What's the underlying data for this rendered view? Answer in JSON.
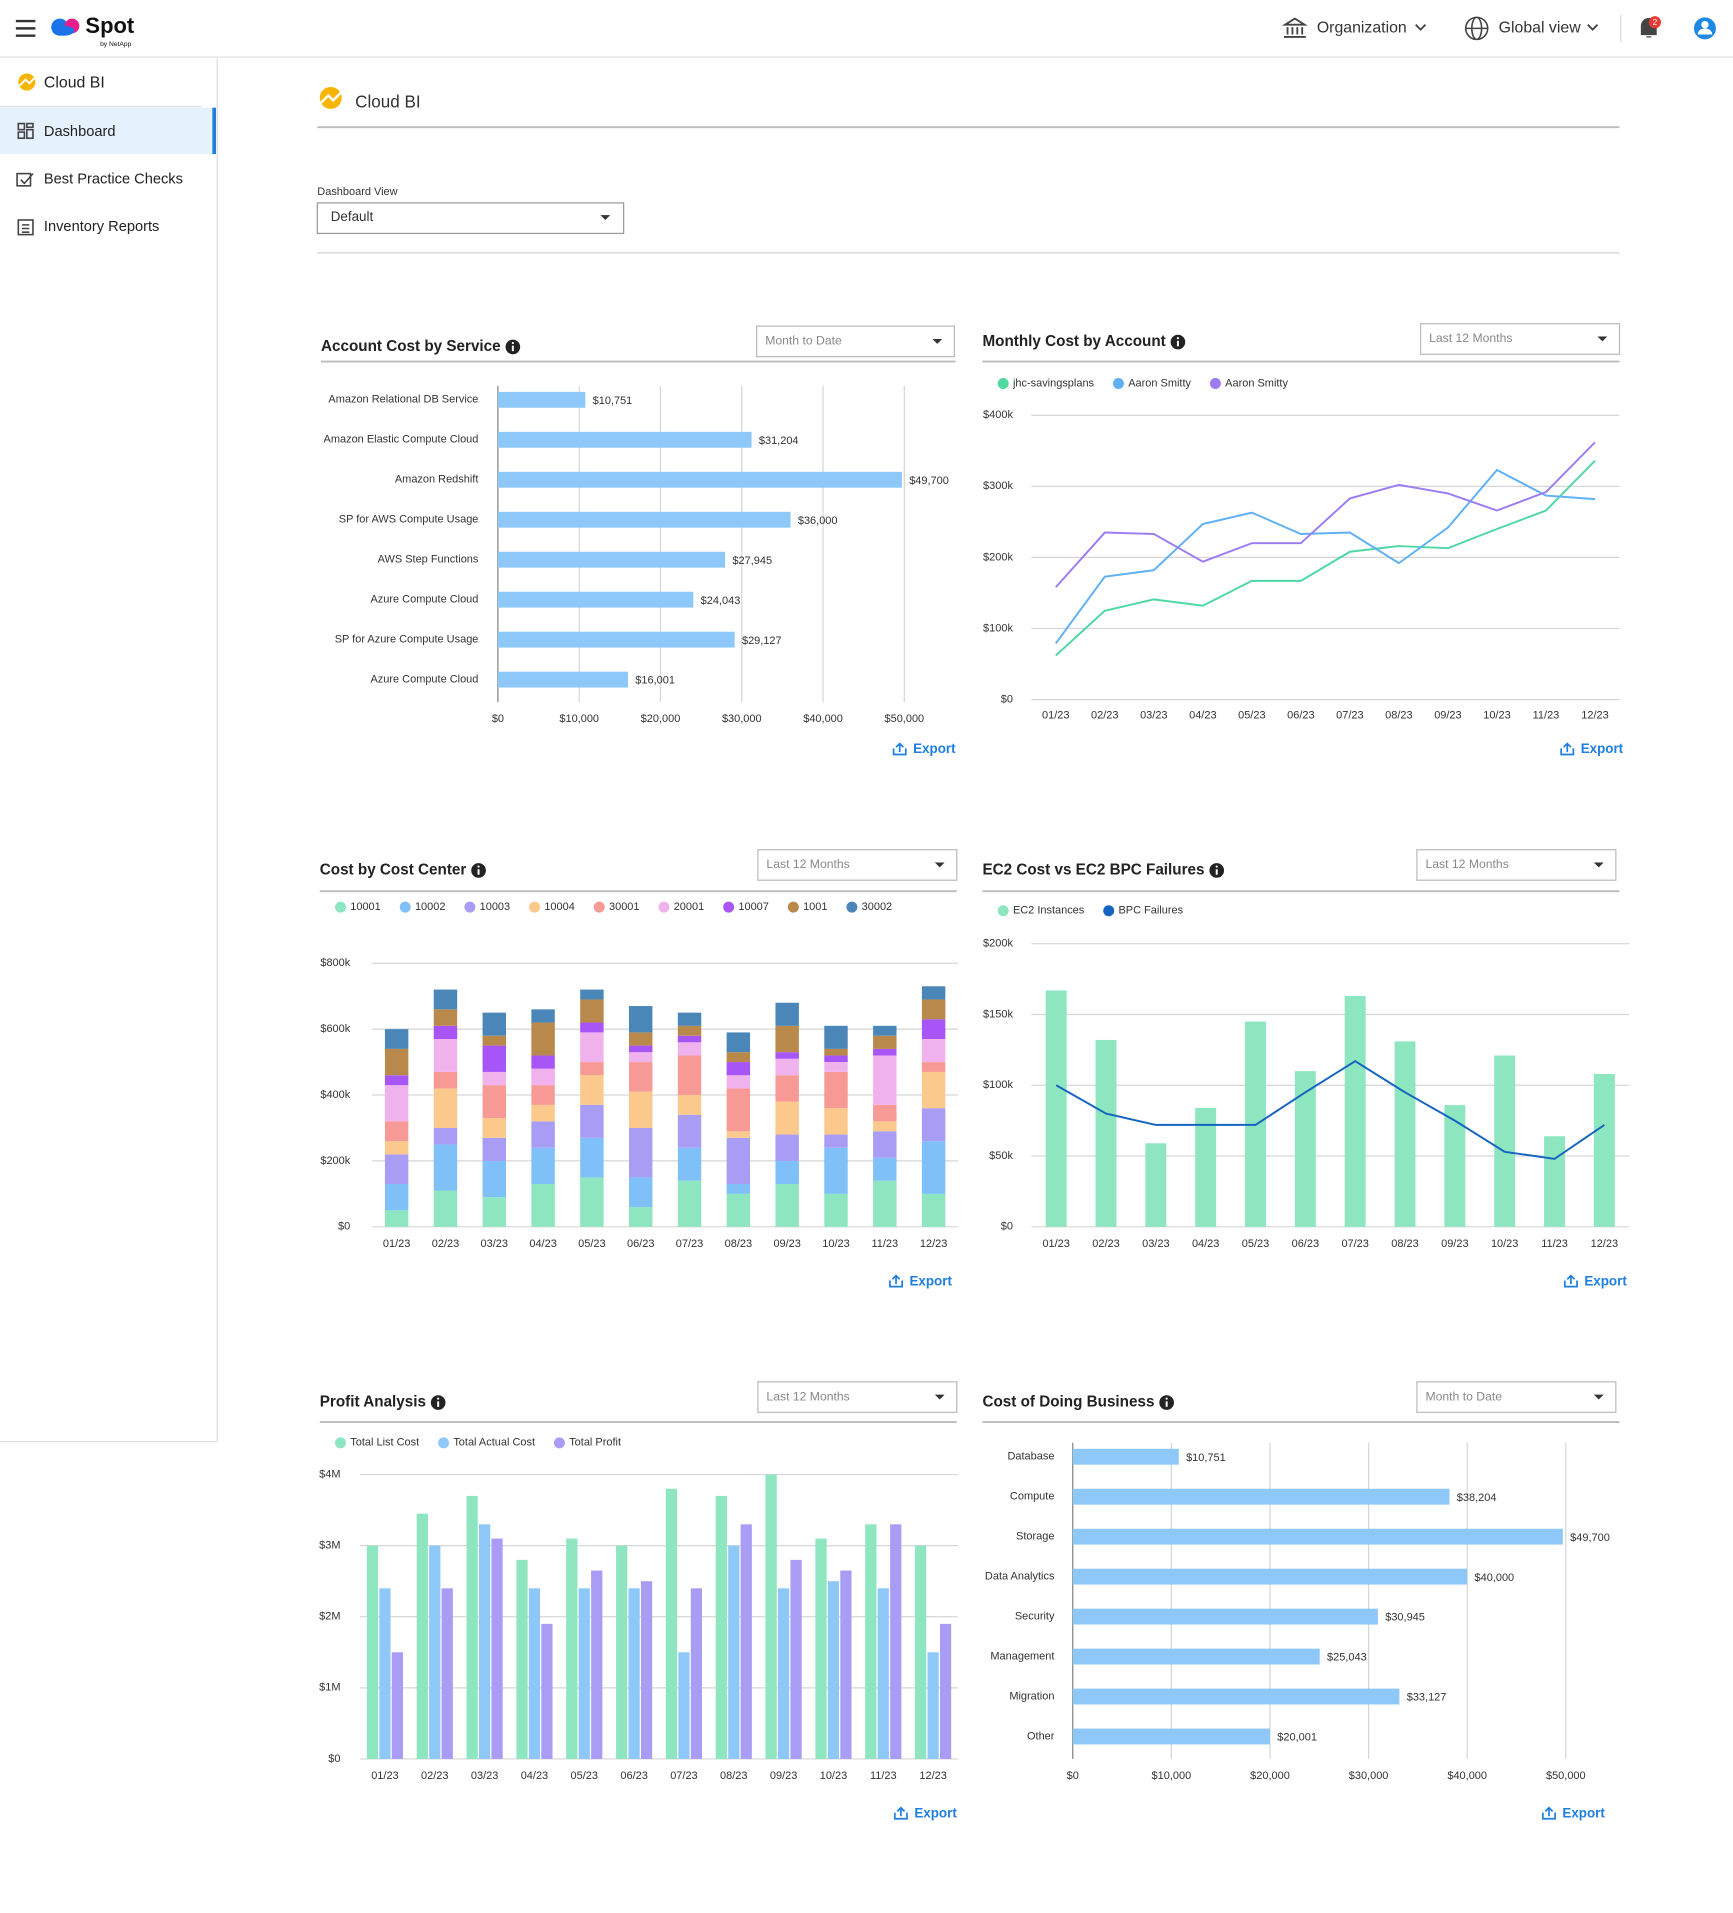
{
  "header": {
    "logo": "Spot",
    "logo_sub": "by NetApp",
    "organization": "Organization",
    "view": "Global view",
    "notification_count": 2
  },
  "sidebar": {
    "section": "Cloud BI",
    "items": [
      "Dashboard",
      "Best Practice Checks",
      "Inventory Reports"
    ]
  },
  "page": {
    "title": "Cloud BI",
    "view_label": "Dashboard View",
    "view_value": "Default"
  },
  "chart_data": [
    {
      "type": "bar",
      "orientation": "horizontal",
      "title": "Account Cost by Service",
      "filter": "Month to Date",
      "action": "Export",
      "categories": [
        "Amazon Relational DB Service",
        "Amazon Elastic Compute Cloud",
        "Amazon Redshift",
        "SP for AWS Compute Usage",
        "AWS Step Functions",
        "Azure Compute Cloud",
        "SP for Azure Compute Usage",
        "Azure Compute Cloud"
      ],
      "values": [
        10751,
        31204,
        49700,
        36000,
        27945,
        24043,
        29127,
        16001
      ],
      "value_labels": [
        "$10,751",
        "$31,204",
        "$49,700",
        "$36,000",
        "$27,945",
        "$24,043",
        "$29,127",
        "$16,001"
      ],
      "color": "#8ec8f8",
      "grid": true,
      "xlim": [
        0,
        50000
      ],
      "xticks": [
        {
          "value": 0,
          "label": "$0"
        },
        {
          "value": 10000,
          "label": "$10,000"
        },
        {
          "value": 20000,
          "label": "$20,000"
        },
        {
          "value": 30000,
          "label": "$30,000"
        },
        {
          "value": 40000,
          "label": "$40,000"
        },
        {
          "value": 50000,
          "label": "$50,000"
        }
      ]
    },
    {
      "type": "line",
      "title": "Monthly Cost by Account",
      "filter": "Last 12 Months",
      "action": "Export",
      "categories": [
        "01/23",
        "02/23",
        "03/23",
        "04/23",
        "05/23",
        "06/23",
        "07/23",
        "08/23",
        "09/23",
        "10/23",
        "11/23",
        "12/23"
      ],
      "series": [
        {
          "name": "jhc-savingsplans",
          "color": "#4fd8a2",
          "values": [
            62000,
            125000,
            141000,
            132000,
            167000,
            167000,
            208000,
            216000,
            213000,
            240000,
            266000,
            336000
          ]
        },
        {
          "name": "Aaron Smitty",
          "color": "#5fb0f5",
          "values": [
            79000,
            173000,
            182000,
            247000,
            263000,
            233000,
            235000,
            192000,
            242000,
            323000,
            287000,
            282000
          ]
        },
        {
          "name": "Aaron Smitty",
          "color": "#9b7cf4",
          "values": [
            158000,
            235000,
            233000,
            194000,
            220000,
            220000,
            283000,
            302000,
            290000,
            266000,
            292000,
            362000
          ]
        }
      ],
      "grid": true,
      "ylim": [
        0,
        400000
      ],
      "yticks": [
        {
          "value": 0,
          "label": "$0"
        },
        {
          "value": 100000,
          "label": "$100k"
        },
        {
          "value": 200000,
          "label": "$200k"
        },
        {
          "value": 300000,
          "label": "$300k"
        },
        {
          "value": 400000,
          "label": "$400k"
        }
      ]
    },
    {
      "type": "stacked_bar",
      "title": "Cost by Cost Center",
      "filter": "Last 12 Months",
      "action": "Export",
      "categories": [
        "01/23",
        "02/23",
        "03/23",
        "04/23",
        "05/23",
        "06/23",
        "07/23",
        "08/23",
        "09/23",
        "10/23",
        "11/23",
        "12/23"
      ],
      "series": [
        {
          "name": "10001",
          "color": "#8ee6c0",
          "values": [
            50000,
            110000,
            90000,
            130000,
            150000,
            60000,
            140000,
            100000,
            130000,
            100000,
            140000,
            100000
          ]
        },
        {
          "name": "10002",
          "color": "#7ec0f7",
          "values": [
            80000,
            140000,
            110000,
            110000,
            120000,
            90000,
            100000,
            30000,
            70000,
            140000,
            70000,
            160000
          ]
        },
        {
          "name": "10003",
          "color": "#a99cf4",
          "values": [
            90000,
            50000,
            70000,
            80000,
            100000,
            150000,
            100000,
            140000,
            80000,
            40000,
            80000,
            100000
          ]
        },
        {
          "name": "10004",
          "color": "#fcc98c",
          "values": [
            40000,
            120000,
            60000,
            50000,
            90000,
            110000,
            60000,
            20000,
            100000,
            80000,
            30000,
            110000
          ]
        },
        {
          "name": "30001",
          "color": "#f79a96",
          "values": [
            60000,
            50000,
            100000,
            60000,
            40000,
            90000,
            120000,
            130000,
            80000,
            110000,
            50000,
            30000
          ]
        },
        {
          "name": "20001",
          "color": "#f0b2ec",
          "values": [
            110000,
            100000,
            40000,
            50000,
            90000,
            30000,
            40000,
            40000,
            50000,
            30000,
            150000,
            70000
          ]
        },
        {
          "name": "10007",
          "color": "#a855f7",
          "values": [
            30000,
            40000,
            80000,
            40000,
            30000,
            20000,
            20000,
            40000,
            20000,
            20000,
            20000,
            60000
          ]
        },
        {
          "name": "1001",
          "color": "#b8894a",
          "values": [
            80000,
            50000,
            30000,
            100000,
            70000,
            40000,
            30000,
            30000,
            80000,
            20000,
            40000,
            60000
          ]
        },
        {
          "name": "30002",
          "color": "#4b86b8",
          "values": [
            60000,
            60000,
            70000,
            40000,
            30000,
            80000,
            40000,
            60000,
            70000,
            70000,
            30000,
            40000
          ]
        }
      ],
      "grid": true,
      "ylim": [
        0,
        800000
      ],
      "yticks": [
        {
          "value": 0,
          "label": "$0"
        },
        {
          "value": 200000,
          "label": "$200k"
        },
        {
          "value": 400000,
          "label": "$400k"
        },
        {
          "value": 600000,
          "label": "$600k"
        },
        {
          "value": 800000,
          "label": "$800k"
        }
      ]
    },
    {
      "type": "combo",
      "title": "EC2 Cost vs EC2 BPC Failures",
      "filter": "Last 12 Months",
      "action": "Export",
      "categories": [
        "01/23",
        "02/23",
        "03/23",
        "04/23",
        "05/23",
        "06/23",
        "07/23",
        "08/23",
        "09/23",
        "10/23",
        "11/23",
        "12/23"
      ],
      "series": [
        {
          "name": "EC2 Instances",
          "type": "bar",
          "color": "#8ee6c0",
          "values": [
            167000,
            132000,
            59000,
            84000,
            145000,
            110000,
            163000,
            131000,
            86000,
            121000,
            64000,
            108000
          ]
        },
        {
          "name": "BPC Failures",
          "type": "line",
          "color": "#1565c0",
          "values": [
            100000,
            80000,
            72000,
            72000,
            72000,
            95000,
            117000,
            95000,
            75000,
            53000,
            48000,
            72000
          ]
        }
      ],
      "grid": true,
      "ylim": [
        0,
        200000
      ],
      "yticks": [
        {
          "value": 0,
          "label": "$0"
        },
        {
          "value": 50000,
          "label": "$50k"
        },
        {
          "value": 100000,
          "label": "$100k"
        },
        {
          "value": 150000,
          "label": "$150k"
        },
        {
          "value": 200000,
          "label": "$200k"
        }
      ]
    },
    {
      "type": "grouped_bar",
      "title": "Profit Analysis",
      "filter": "Last 12 Months",
      "action": "Export",
      "categories": [
        "01/23",
        "02/23",
        "03/23",
        "04/23",
        "05/23",
        "06/23",
        "07/23",
        "08/23",
        "09/23",
        "10/23",
        "11/23",
        "12/23"
      ],
      "series": [
        {
          "name": "Total List Cost",
          "color": "#8ee6c0",
          "values": [
            3000000,
            3450000,
            3700000,
            2800000,
            3100000,
            3000000,
            3800000,
            3700000,
            4000000,
            3100000,
            3300000,
            3000000
          ]
        },
        {
          "name": "Total Actual Cost",
          "color": "#8ec8f8",
          "values": [
            2400000,
            3000000,
            3300000,
            2400000,
            2400000,
            2400000,
            1500000,
            3000000,
            2400000,
            2500000,
            2400000,
            1500000
          ]
        },
        {
          "name": "Total Profit",
          "color": "#a99cf4",
          "values": [
            1500000,
            2400000,
            3100000,
            1900000,
            2650000,
            2500000,
            2400000,
            3300000,
            2800000,
            2650000,
            3300000,
            1900000
          ]
        }
      ],
      "grid": true,
      "ylim": [
        0,
        4000000
      ],
      "yticks": [
        {
          "value": 0,
          "label": "$0"
        },
        {
          "value": 1000000,
          "label": "$1M"
        },
        {
          "value": 2000000,
          "label": "$2M"
        },
        {
          "value": 3000000,
          "label": "$3M"
        },
        {
          "value": 4000000,
          "label": "$4M"
        }
      ]
    },
    {
      "type": "bar",
      "orientation": "horizontal",
      "title": "Cost of Doing Business",
      "filter": "Month to Date",
      "action": "Export",
      "categories": [
        "Database",
        "Compute",
        "Storage",
        "Data Analytics",
        "Security",
        "Management",
        "Migration",
        "Other"
      ],
      "values": [
        10751,
        38204,
        49700,
        40000,
        30945,
        25043,
        33127,
        20001
      ],
      "value_labels": [
        "$10,751",
        "$38,204",
        "$49,700",
        "$40,000",
        "$30,945",
        "$25,043",
        "$33,127",
        "$20,001"
      ],
      "color": "#8ec8f8",
      "grid": true,
      "xlim": [
        0,
        50000
      ],
      "xticks": [
        {
          "value": 0,
          "label": "$0"
        },
        {
          "value": 10000,
          "label": "$10,000"
        },
        {
          "value": 20000,
          "label": "$20,000"
        },
        {
          "value": 30000,
          "label": "$30,000"
        },
        {
          "value": 40000,
          "label": "$40,000"
        },
        {
          "value": 50000,
          "label": "$50,000"
        }
      ]
    }
  ]
}
